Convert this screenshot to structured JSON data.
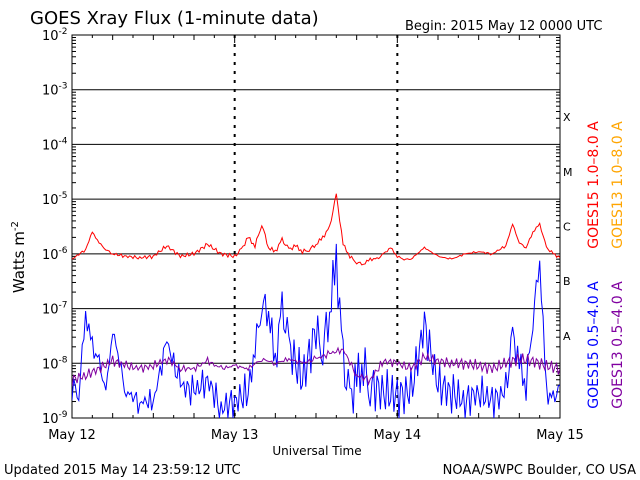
{
  "chart_data": {
    "type": "line",
    "title": "GOES Xray Flux (1-minute data)",
    "begin": "Begin:  2015 May 12 0000 UTC",
    "ylabel": "Watts m",
    "ylabel_exponent": "-2",
    "xlabel": "Universal Time",
    "y_scale": "log",
    "ylim": [
      1e-09,
      0.01
    ],
    "y_ticks": [
      {
        "base": "10",
        "exp": "-2"
      },
      {
        "base": "10",
        "exp": "-3"
      },
      {
        "base": "10",
        "exp": "-4"
      },
      {
        "base": "10",
        "exp": "-5"
      },
      {
        "base": "10",
        "exp": "-6"
      },
      {
        "base": "10",
        "exp": "-7"
      },
      {
        "base": "10",
        "exp": "-8"
      },
      {
        "base": "10",
        "exp": "-9"
      }
    ],
    "x_ticks": [
      "May 12",
      "May 13",
      "May 14",
      "May 15"
    ],
    "xlim": [
      "2015-05-12 00:00",
      "2015-05-15 00:00"
    ],
    "flare_classes": [
      "X",
      "M",
      "C",
      "B",
      "A"
    ],
    "right_labels": [
      {
        "text": "GOES15 1.0–8.0 A",
        "color": "#ff0000"
      },
      {
        "text": "GOES13 1.0–8.0 A",
        "color": "#ffa500"
      },
      {
        "text": "GOES15 0.5–4.0 A",
        "color": "#0000ff"
      },
      {
        "text": "GOES13 0.5–4.0 A",
        "color": "#8000a0"
      }
    ],
    "series": [
      {
        "name": "GOES15 1.0–8.0 A",
        "color": "#ff0000",
        "x_hours": [
          0,
          2,
          3,
          4,
          5,
          6,
          8,
          10,
          12,
          14,
          16,
          18,
          20,
          22,
          24,
          25,
          26,
          27,
          28,
          29,
          30,
          31,
          32,
          33,
          34,
          35,
          36,
          37,
          38,
          39,
          40,
          41,
          42,
          43,
          44,
          45,
          46,
          47,
          48,
          49,
          50,
          52,
          54,
          56,
          58,
          60,
          62,
          64,
          65,
          66,
          67,
          68,
          69,
          70,
          71,
          72
        ],
        "values": [
          8e-07,
          1.2e-06,
          2.5e-06,
          1.6e-06,
          1.2e-06,
          1e-06,
          9e-07,
          8.5e-07,
          9e-07,
          1.4e-06,
          9e-07,
          1e-06,
          1.5e-06,
          1e-06,
          9e-07,
          1.2e-06,
          2e-06,
          1.4e-06,
          3.5e-06,
          1.3e-06,
          1.1e-06,
          1.8e-06,
          1.2e-06,
          1.4e-06,
          1.1e-06,
          1.2e-06,
          1.5e-06,
          2e-06,
          3e-06,
          1.2e-05,
          1.5e-06,
          9e-07,
          7e-07,
          6.5e-07,
          8e-07,
          8e-07,
          1e-06,
          1.3e-06,
          9e-07,
          8e-07,
          8e-07,
          1.3e-06,
          9e-07,
          8e-07,
          1e-06,
          1.1e-06,
          1e-06,
          1.4e-06,
          3.5e-06,
          1.6e-06,
          1.3e-06,
          2.5e-06,
          3.5e-06,
          1.3e-06,
          1e-06,
          8.5e-07
        ]
      },
      {
        "name": "GOES15 0.5–4.0 A",
        "color": "#0000ff",
        "x_hours": [
          0,
          1,
          2,
          3,
          4,
          5,
          6,
          8,
          10,
          12,
          14,
          16,
          18,
          20,
          22,
          24,
          26,
          27,
          28,
          29,
          30,
          31,
          32,
          34,
          36,
          37,
          38,
          39,
          40,
          41,
          42,
          43,
          44,
          46,
          48,
          50,
          52,
          54,
          56,
          58,
          60,
          62,
          64,
          65,
          66,
          67,
          68,
          69,
          70,
          71,
          72
        ],
        "values": [
          4e-09,
          3e-09,
          8e-08,
          2e-08,
          1e-08,
          3e-09,
          4e-08,
          3e-09,
          2e-09,
          2e-09,
          2.5e-08,
          4e-09,
          3e-09,
          5e-09,
          1.5e-09,
          2e-09,
          3e-09,
          2e-08,
          1.3e-07,
          1e-07,
          1e-08,
          1e-07,
          2e-08,
          5e-09,
          4e-08,
          2e-08,
          1e-07,
          8e-07,
          1e-08,
          2e-09,
          5e-09,
          1e-08,
          4e-09,
          3e-09,
          2.5e-09,
          3e-09,
          5e-08,
          4e-09,
          3e-09,
          2e-09,
          3e-09,
          2e-09,
          3e-09,
          3e-08,
          1e-08,
          4e-09,
          7e-08,
          8e-07,
          3e-09,
          2e-09,
          4e-09
        ]
      },
      {
        "name": "GOES13 0.5–4.0 A",
        "color": "#8000a0",
        "x_hours": [
          0,
          2,
          4,
          6,
          8,
          10,
          12,
          14,
          16,
          18,
          20,
          22,
          24,
          26,
          28,
          30,
          32,
          34,
          36,
          38,
          40,
          42,
          44,
          46,
          48,
          50,
          52,
          54,
          56,
          58,
          60,
          62,
          64,
          66,
          68,
          70,
          72
        ],
        "values": [
          5e-09,
          6e-09,
          8e-09,
          1.1e-08,
          9e-09,
          8e-09,
          9e-09,
          1.2e-08,
          8e-09,
          8e-09,
          1.1e-08,
          8e-09,
          9e-09,
          8e-09,
          1.2e-08,
          1e-08,
          1.2e-08,
          1e-08,
          1.2e-08,
          1.5e-08,
          1.8e-08,
          6e-09,
          5e-09,
          1.1e-08,
          1e-08,
          8e-09,
          1.3e-08,
          1.1e-08,
          1e-08,
          1e-08,
          9e-09,
          8e-09,
          1e-08,
          1.2e-08,
          1.1e-08,
          9e-09,
          8e-09
        ]
      }
    ]
  },
  "footer": {
    "updated": "Updated 2015 May 14 23:59:12 UTC",
    "credit": "NOAA/SWPC Boulder, CO USA"
  }
}
